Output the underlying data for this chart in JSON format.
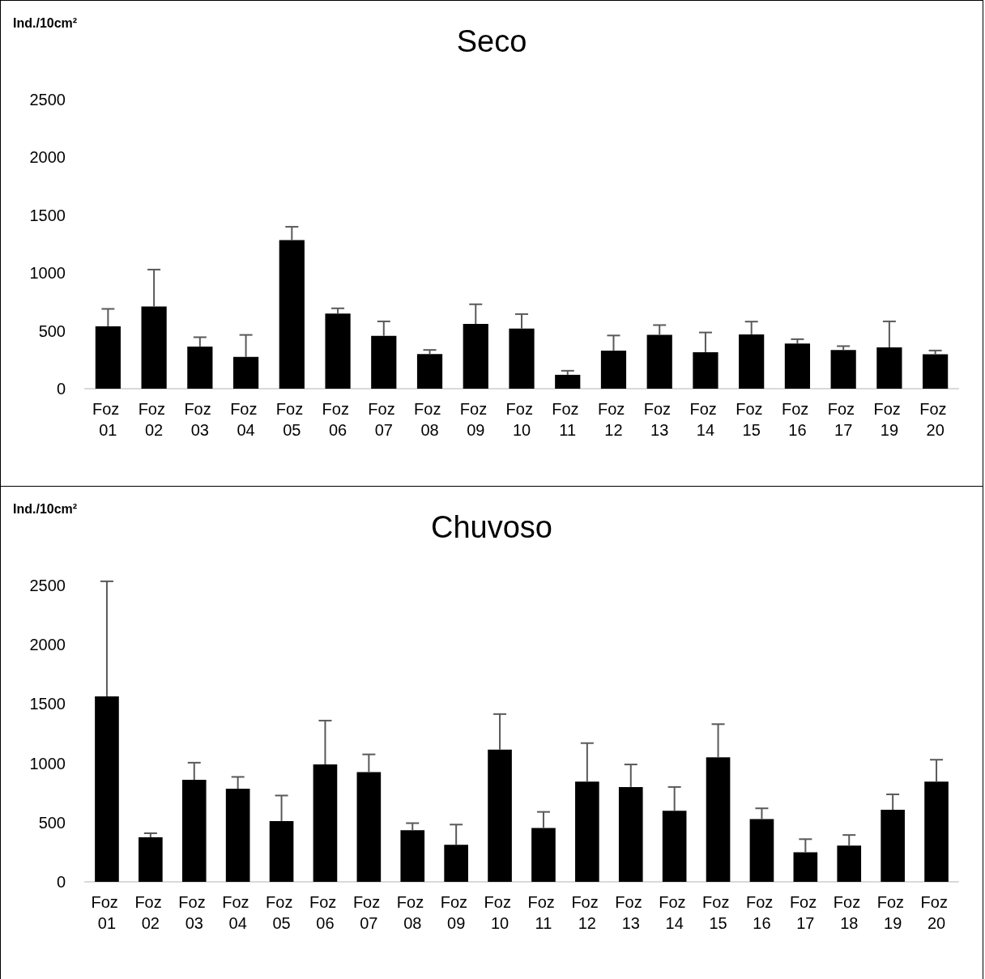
{
  "chart_data": [
    {
      "type": "bar",
      "title": "Seco",
      "ylabel": "Ind./10cm²",
      "categories": [
        "Foz 01",
        "Foz 02",
        "Foz 03",
        "Foz 04",
        "Foz 05",
        "Foz 06",
        "Foz 07",
        "Foz 08",
        "Foz 09",
        "Foz 10",
        "Foz 11",
        "Foz 12",
        "Foz 13",
        "Foz 14",
        "Foz 15",
        "Foz 16",
        "Foz 17",
        "Foz 19",
        "Foz 20"
      ],
      "values": [
        540,
        710,
        365,
        275,
        1285,
        650,
        457,
        300,
        560,
        520,
        120,
        330,
        465,
        316,
        470,
        390,
        335,
        357,
        297
      ],
      "errors": [
        [
          540,
          690
        ],
        [
          710,
          1030
        ],
        [
          365,
          445
        ],
        [
          275,
          465
        ],
        [
          1285,
          1400
        ],
        [
          650,
          695
        ],
        [
          457,
          582
        ],
        [
          300,
          335
        ],
        [
          560,
          730
        ],
        [
          520,
          645
        ],
        [
          120,
          155
        ],
        [
          330,
          460
        ],
        [
          465,
          550
        ],
        [
          316,
          486
        ],
        [
          470,
          580
        ],
        [
          390,
          428
        ],
        [
          335,
          368
        ],
        [
          357,
          582
        ],
        [
          297,
          330
        ]
      ],
      "color": "#000000",
      "ylim": [
        0,
        2500
      ],
      "yticks": [
        0,
        500,
        1000,
        1500,
        2000,
        2500
      ],
      "grid": false
    },
    {
      "type": "bar",
      "title": "Chuvoso",
      "ylabel": "Ind./10cm²",
      "categories": [
        "Foz 01",
        "Foz 02",
        "Foz 03",
        "Foz 04",
        "Foz 05",
        "Foz 06",
        "Foz 07",
        "Foz 08",
        "Foz 09",
        "Foz 10",
        "Foz 11",
        "Foz 12",
        "Foz 13",
        "Foz 14",
        "Foz 15",
        "Foz 16",
        "Foz 17",
        "Foz 18",
        "Foz 19",
        "Foz 20"
      ],
      "values": [
        1565,
        375,
        860,
        785,
        513,
        990,
        925,
        435,
        313,
        1115,
        455,
        845,
        800,
        600,
        1050,
        530,
        250,
        305,
        608,
        845
      ],
      "errors": [
        [
          1565,
          2535
        ],
        [
          375,
          410
        ],
        [
          860,
          1005
        ],
        [
          785,
          885
        ],
        [
          513,
          728
        ],
        [
          990,
          1360
        ],
        [
          925,
          1075
        ],
        [
          435,
          495
        ],
        [
          313,
          483
        ],
        [
          1115,
          1415
        ],
        [
          455,
          590
        ],
        [
          845,
          1170
        ],
        [
          800,
          990
        ],
        [
          600,
          800
        ],
        [
          1050,
          1330
        ],
        [
          530,
          620
        ],
        [
          250,
          360
        ],
        [
          305,
          395
        ],
        [
          608,
          738
        ],
        [
          845,
          1030
        ]
      ],
      "color": "#000000",
      "ylim": [
        0,
        2500
      ],
      "yticks": [
        0,
        500,
        1000,
        1500,
        2000,
        2500
      ],
      "grid": false
    }
  ]
}
